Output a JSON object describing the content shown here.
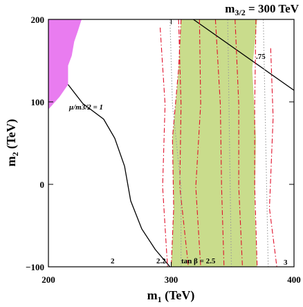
{
  "chart_data": {
    "type": "line",
    "title": {
      "base": "m",
      "sub": "3/2",
      "rest": " = 300 TeV"
    },
    "x_label": {
      "base": "m",
      "sub": "1",
      "rest": " (TeV)"
    },
    "y_label": {
      "base": "m",
      "sub": "2",
      "rest": " (TeV)"
    },
    "xlim": [
      200,
      400
    ],
    "ylim": [
      -100,
      200
    ],
    "xticks": [
      200,
      300,
      400
    ],
    "yticks": [
      {
        "value": -100,
        "label": "−100"
      },
      0,
      100,
      200
    ],
    "regions": [
      {
        "color": "#e97cf0",
        "x": [
          200,
          227,
          224,
          221,
          219,
          216,
          216,
          209,
          200
        ],
        "y": [
          200,
          200,
          186,
          173,
          156,
          144,
          121,
          106,
          91
        ]
      },
      {
        "color": "#c9dc8c",
        "x": [
          308,
          370,
          366,
          369,
          368,
          370,
          300,
          302,
          301,
          306
        ],
        "y": [
          200,
          200,
          140,
          56,
          -29,
          -100,
          -100,
          -29,
          56,
          140
        ]
      }
    ],
    "series": [
      {
        "color": "#000000",
        "style": "solid",
        "x": [
          216,
          228,
          245,
          254,
          262,
          267,
          276,
          287,
          299
        ],
        "y": [
          121,
          98,
          79,
          56,
          22,
          -20,
          -54,
          -79,
          -100
        ]
      },
      {
        "color": "#000000",
        "style": "solid",
        "x": [
          318,
          400
        ],
        "y": [
          200,
          114
        ]
      },
      {
        "color": "#e0102a",
        "style": "dashdot",
        "x": [
          291,
          295,
          293,
          297
        ],
        "y": [
          190,
          97,
          -3,
          -100
        ]
      },
      {
        "color": "#e0102a",
        "style": "dashdot",
        "x": [
          306,
          308,
          307,
          314
        ],
        "y": [
          200,
          97,
          -3,
          -100
        ]
      },
      {
        "color": "#e0102a",
        "style": "dashdot",
        "x": [
          323,
          324,
          320,
          324
        ],
        "y": [
          200,
          97,
          -3,
          -100
        ]
      },
      {
        "color": "#e0102a",
        "style": "dashdot",
        "x": [
          308,
          306,
          301,
          302,
          300
        ],
        "y": [
          200,
          140,
          56,
          -29,
          -100
        ]
      },
      {
        "color": "#e0102a",
        "style": "dashdot",
        "x": [
          336,
          340,
          341,
          343
        ],
        "y": [
          200,
          97,
          -3,
          -100
        ]
      },
      {
        "color": "#e0102a",
        "style": "dashdot",
        "x": [
          352,
          355,
          355,
          358
        ],
        "y": [
          200,
          97,
          -3,
          -100
        ]
      },
      {
        "color": "#e0102a",
        "style": "dashdot",
        "x": [
          369,
          368,
          368,
          370
        ],
        "y": [
          200,
          97,
          -3,
          -100
        ]
      },
      {
        "color": "#e0102a",
        "style": "dashdot",
        "x": [
          381,
          383,
          380,
          386
        ],
        "y": [
          165,
          81,
          -29,
          -100
        ]
      },
      {
        "color": "#999999",
        "style": "dotted",
        "x": [
          299,
          301,
          308,
          308
        ],
        "y": [
          200,
          97,
          -3,
          -100
        ]
      },
      {
        "color": "#999999",
        "style": "dotted",
        "x": [
          346,
          349
        ],
        "y": [
          200,
          -100
        ]
      },
      {
        "color": "#999999",
        "style": "dotted",
        "x": [
          375,
          379
        ],
        "y": [
          200,
          -100
        ]
      }
    ],
    "annotations": [
      "μ/m3/2 = 1",
      ".75",
      "2",
      "2.2",
      "tan β = 2.5",
      "3"
    ]
  }
}
